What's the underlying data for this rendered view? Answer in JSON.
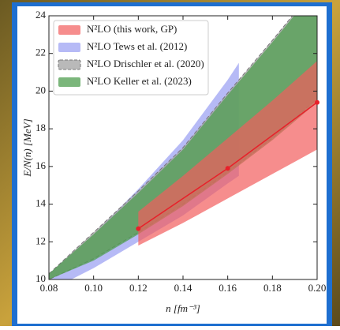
{
  "chart_data": {
    "type": "band",
    "xlabel": "n [fm⁻³]",
    "ylabel": "E/N(n) [MeV]",
    "xlim": [
      0.08,
      0.2
    ],
    "ylim": [
      10,
      24
    ],
    "xticks": [
      {
        "value": 0.08,
        "label": "0.08"
      },
      {
        "value": 0.1,
        "label": "0.10"
      },
      {
        "value": 0.12,
        "label": "0.12"
      },
      {
        "value": 0.14,
        "label": "0.14"
      },
      {
        "value": 0.16,
        "label": "0.16"
      },
      {
        "value": 0.18,
        "label": "0.18"
      },
      {
        "value": 0.2,
        "label": "0.20"
      }
    ],
    "yticks": [
      10,
      12,
      14,
      16,
      18,
      20,
      22,
      24
    ],
    "legend": "upper left",
    "bands": [
      {
        "name": "N²LO Tews et al. (2012)",
        "color": "#a9aef5",
        "opacity": 0.85,
        "dashed": false,
        "x": [
          0.08,
          0.1,
          0.12,
          0.14,
          0.16,
          0.165
        ],
        "lower": [
          9.4,
          10.6,
          12.0,
          13.4,
          15.1,
          15.5
        ],
        "upper": [
          10.3,
          12.4,
          14.8,
          17.4,
          20.6,
          21.5
        ]
      },
      {
        "name": "N²LO Drischler et al. (2020)",
        "color": "#a8a8a8",
        "opacity": 0.8,
        "dashed": true,
        "x": [
          0.08,
          0.1,
          0.12,
          0.14,
          0.16,
          0.18,
          0.2
        ],
        "lower": [
          10.0,
          11.1,
          12.5,
          14.0,
          15.7,
          17.5,
          19.6
        ],
        "upper": [
          10.3,
          12.5,
          14.7,
          17.0,
          19.9,
          22.7,
          25.6
        ]
      },
      {
        "name": "N²LO Keller et al. (2023)",
        "color": "#4f9e4f",
        "opacity": 0.75,
        "dashed": false,
        "x": [
          0.08,
          0.1,
          0.12,
          0.14,
          0.16,
          0.18,
          0.2
        ],
        "lower": [
          10.0,
          11.0,
          12.4,
          13.9,
          15.6,
          17.4,
          19.4
        ],
        "upper": [
          10.3,
          12.4,
          14.6,
          16.9,
          19.8,
          22.6,
          25.5
        ]
      },
      {
        "name": "N²LO (this work, GP)",
        "color": "#f25c5c",
        "opacity": 0.7,
        "dashed": false,
        "x": [
          0.12,
          0.14,
          0.16,
          0.18,
          0.2
        ],
        "lower": [
          11.8,
          13.0,
          14.3,
          15.6,
          16.9
        ],
        "upper": [
          13.6,
          15.5,
          17.5,
          19.5,
          21.6
        ]
      }
    ],
    "legend_order": [
      3,
      0,
      1,
      2
    ],
    "line": {
      "color": "#e8202a",
      "x": [
        0.12,
        0.16,
        0.2
      ],
      "values": [
        12.7,
        15.9,
        19.4
      ]
    }
  }
}
